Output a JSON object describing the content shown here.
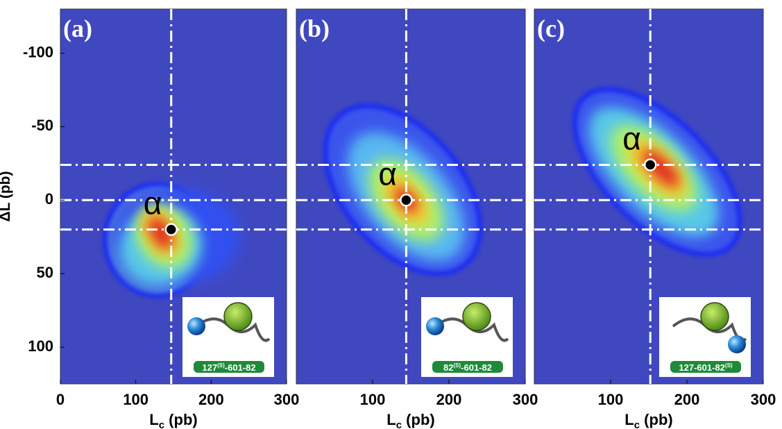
{
  "chart_data": [
    {
      "type": "density",
      "panel_label": "(a)",
      "xlabel": {
        "main": "L",
        "sub": "c",
        "rest": " (pb)"
      },
      "ylabel": "ΔL  (pb)",
      "xlim": [
        0,
        300
      ],
      "xticks": [
        0,
        100,
        200,
        300
      ],
      "ylim": [
        -130,
        125
      ],
      "yticks": [
        -100,
        -50,
        0,
        50,
        100
      ],
      "y_inverted": true,
      "vlines": [
        147
      ],
      "hlines": [
        -24,
        0,
        20
      ],
      "point": {
        "x": 147,
        "y": 20
      },
      "annotation": "α",
      "inset_label": [
        {
          "text": "127"
        },
        {
          "text": "(S)",
          "sup": true
        },
        {
          "text": "-601-82"
        }
      ]
    },
    {
      "type": "density",
      "panel_label": "(b)",
      "xlabel": {
        "main": "L",
        "sub": "c",
        "rest": " (pb)"
      },
      "xlim": [
        0,
        300
      ],
      "xticks": [
        100,
        200,
        300
      ],
      "ylim": [
        -130,
        125
      ],
      "y_inverted": true,
      "vlines": [
        144
      ],
      "hlines": [
        -24,
        0,
        20
      ],
      "point": {
        "x": 144,
        "y": 0
      },
      "annotation": "α",
      "inset_label": [
        {
          "text": "82"
        },
        {
          "text": "(S)",
          "sup": true
        },
        {
          "text": "-601-82"
        }
      ]
    },
    {
      "type": "density",
      "panel_label": "(c)",
      "xlabel": {
        "main": "L",
        "sub": "c",
        "rest": " (pb)"
      },
      "xlim": [
        0,
        300
      ],
      "xticks": [
        100,
        200,
        300
      ],
      "ylim": [
        -130,
        125
      ],
      "y_inverted": true,
      "vlines": [
        152
      ],
      "hlines": [
        -24,
        0,
        20
      ],
      "point": {
        "x": 152,
        "y": -24
      },
      "annotation": "α",
      "inset_label": [
        {
          "text": "127-601-82"
        },
        {
          "text": "(S)",
          "sup": true
        }
      ]
    }
  ]
}
